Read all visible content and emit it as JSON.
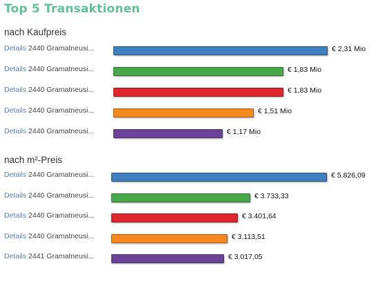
{
  "title": "Top 5 Transaktionen",
  "link_label": "Details",
  "colors": [
    "#3f7fbf",
    "#49a94a",
    "#e1262b",
    "#f78a1f",
    "#6b4398"
  ],
  "chart_data": [
    {
      "type": "bar",
      "title": "nach Kaufpreis",
      "categories": [
        "2440 Gramatneusi...",
        "2440 Gramatneusi...",
        "2440 Gramatneusi...",
        "2440 Gramatneusi...",
        "2440 Gramatneusi..."
      ],
      "values": [
        2.31,
        1.83,
        1.83,
        1.51,
        1.17
      ],
      "value_labels": [
        "€ 2,31 Mio",
        "€ 1,83 Mio",
        "€ 1,83 Mio",
        "€ 1,51 Mio",
        "€ 1,17 Mio"
      ]
    },
    {
      "type": "bar",
      "title": "nach m²-Preis",
      "categories": [
        "2440 Gramatneusi...",
        "2440 Gramatneusi...",
        "2440 Gramatneusi...",
        "2440 Gramatneusi...",
        "2441 Gramatneusi..."
      ],
      "values": [
        5826.09,
        3733.33,
        3401.64,
        3113.51,
        3017.05
      ],
      "value_labels": [
        "€ 5.826,09",
        "€ 3.733,33",
        "€ 3.401,64",
        "€ 3.113,51",
        "€ 3.017,05"
      ]
    }
  ]
}
